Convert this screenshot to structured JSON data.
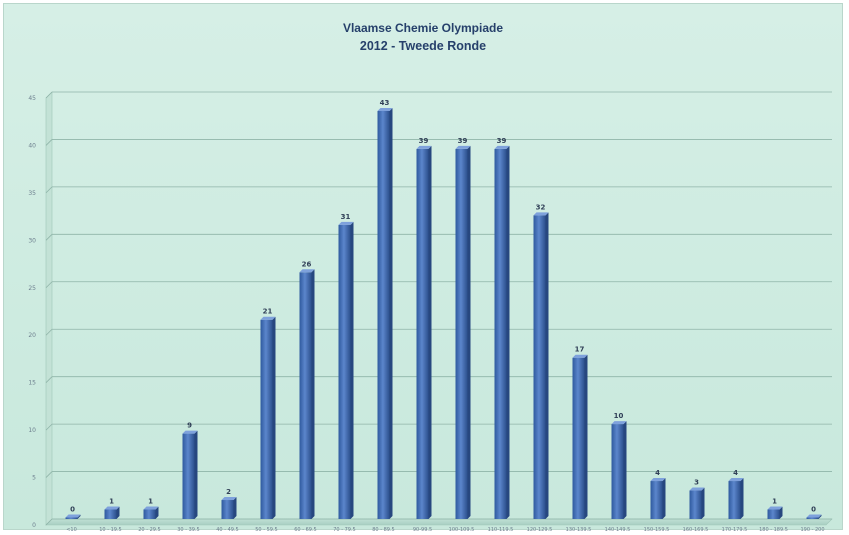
{
  "chart_data": {
    "type": "bar",
    "title": "Vlaamse Chemie Olympiade",
    "subtitle": "2012 - Tweede Ronde",
    "xlabel": "",
    "ylabel": "",
    "ylim": [
      0,
      45
    ],
    "yticks": [
      0,
      5,
      10,
      15,
      20,
      25,
      30,
      35,
      40,
      45
    ],
    "grid": true,
    "legend": "none",
    "bar_color": "#4a72b8",
    "categories": [
      "<10",
      "10 - 19.5",
      "20 - 29.5",
      "30 - 39.5",
      "40 - 49.5",
      "50 - 59.5",
      "60 - 69.5",
      "70 - 79.5",
      "80 - 89.5",
      "90-99.5",
      "100-109.5",
      "110-119.5",
      "120-129.5",
      "130-139.5",
      "140-149.5",
      "150-159.5",
      "160-169.5",
      "170-179.5",
      "180 - 189.5",
      "190 - 200"
    ],
    "values": [
      0,
      1,
      1,
      9,
      2,
      21,
      26,
      31,
      43,
      39,
      39,
      39,
      32,
      17,
      10,
      4,
      3,
      4,
      1,
      0
    ]
  }
}
